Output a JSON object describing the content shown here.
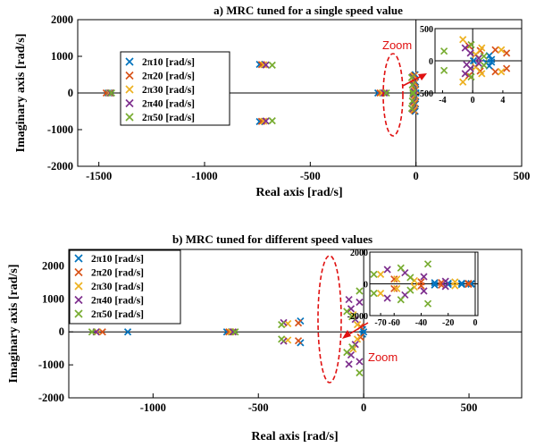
{
  "chart_data": [
    {
      "type": "scatter",
      "title": "a) MRC tuned for a single speed value",
      "xlabel": "Real axis [rad/s]",
      "ylabel": "Imaginary axis [rad/s]",
      "xlim": [
        -1600,
        500
      ],
      "ylim": [
        -2000,
        2000
      ],
      "xticks": [
        -1500,
        -1000,
        -500,
        0,
        500
      ],
      "xtick_labels": [
        "-1500",
        "-1000",
        "-500",
        "0",
        "500"
      ],
      "yticks": [
        -2000,
        -1000,
        0,
        1000,
        2000
      ],
      "ytick_labels": [
        "-2000",
        "-1000",
        "0",
        "1000",
        "2000"
      ],
      "legend_position": "left",
      "annotation": "Zoom",
      "series": [
        {
          "name": "2π10 [rad/s]",
          "color": "#0072bd",
          "points": [
            [
              -1455,
              0
            ],
            [
              -740,
              780
            ],
            [
              -740,
              -780
            ],
            [
              -180,
              0
            ],
            [
              -4,
              500
            ],
            [
              -4,
              -500
            ],
            [
              -2,
              300
            ],
            [
              -2,
              -300
            ],
            [
              -1,
              100
            ],
            [
              -1,
              -100
            ],
            [
              0,
              0
            ]
          ]
        },
        {
          "name": "2π20 [rad/s]",
          "color": "#d95319",
          "points": [
            [
              -1465,
              0
            ],
            [
              -730,
              775
            ],
            [
              -730,
              -775
            ],
            [
              -170,
              0
            ],
            [
              -8,
              480
            ],
            [
              -8,
              -480
            ],
            [
              -5,
              280
            ],
            [
              -5,
              -280
            ],
            [
              -3,
              80
            ],
            [
              -3,
              -80
            ]
          ]
        },
        {
          "name": "2π30 [rad/s]",
          "color": "#edb120",
          "points": [
            [
              -1450,
              0
            ],
            [
              -720,
              770
            ],
            [
              -720,
              -770
            ],
            [
              -160,
              0
            ],
            [
              -12,
              460
            ],
            [
              -12,
              -460
            ],
            [
              -9,
              260
            ],
            [
              -9,
              -260
            ],
            [
              -6,
              60
            ],
            [
              -6,
              -60
            ]
          ]
        },
        {
          "name": "2π40 [rad/s]",
          "color": "#7e2f8e",
          "points": [
            [
              -1445,
              0
            ],
            [
              -710,
              765
            ],
            [
              -710,
              -765
            ],
            [
              -150,
              0
            ],
            [
              -16,
              440
            ],
            [
              -16,
              -440
            ],
            [
              -13,
              240
            ],
            [
              -13,
              -240
            ],
            [
              -10,
              40
            ],
            [
              -10,
              -40
            ]
          ]
        },
        {
          "name": "2π50 [rad/s]",
          "color": "#77ac30",
          "points": [
            [
              -1440,
              0
            ],
            [
              -680,
              760
            ],
            [
              -680,
              -760
            ],
            [
              -140,
              0
            ],
            [
              -20,
              420
            ],
            [
              -20,
              -420
            ],
            [
              -17,
              220
            ],
            [
              -17,
              -220
            ],
            [
              -14,
              20
            ],
            [
              -14,
              -20
            ]
          ]
        }
      ],
      "inset": {
        "xlim": [
          -5,
          6.5
        ],
        "ylim": [
          -500,
          500
        ],
        "xticks": [
          -4,
          0,
          4
        ],
        "xtick_labels": [
          "-4",
          "0",
          "4"
        ],
        "yticks": [
          -500,
          0,
          500
        ],
        "ytick_labels": [
          "-500",
          "0",
          "500"
        ],
        "series": [
          {
            "name": "2π10 [rad/s]",
            "color": "#0072bd",
            "points": [
              [
                2.5,
                20
              ],
              [
                2.5,
                -20
              ],
              [
                2.2,
                80
              ],
              [
                2.2,
                -80
              ],
              [
                1.8,
                -30
              ],
              [
                0.1,
                0
              ]
            ]
          },
          {
            "name": "2π20 [rad/s]",
            "color": "#d95319",
            "points": [
              [
                4.5,
                120
              ],
              [
                4.5,
                -120
              ],
              [
                3,
                170
              ],
              [
                3,
                -170
              ],
              [
                -0.5,
                230
              ],
              [
                -0.5,
                -230
              ],
              [
                1,
                160
              ],
              [
                1,
                -160
              ]
            ]
          },
          {
            "name": "2π30 [rad/s]",
            "color": "#edb120",
            "points": [
              [
                -1.3,
                330
              ],
              [
                -1.3,
                -330
              ],
              [
                1.2,
                200
              ],
              [
                1.2,
                -200
              ],
              [
                3.8,
                170
              ],
              [
                3.8,
                -170
              ],
              [
                0.4,
                100
              ],
              [
                0.4,
                -100
              ]
            ]
          },
          {
            "name": "2π40 [rad/s]",
            "color": "#7e2f8e",
            "points": [
              [
                -1,
                200
              ],
              [
                -1,
                -200
              ],
              [
                -0.3,
                120
              ],
              [
                -0.3,
                -120
              ],
              [
                0.8,
                40
              ],
              [
                0.8,
                -40
              ],
              [
                -0.8,
                -60
              ]
            ]
          },
          {
            "name": "2π50 [rad/s]",
            "color": "#77ac30",
            "points": [
              [
                -3.8,
                150
              ],
              [
                -3.8,
                -150
              ],
              [
                -0.2,
                250
              ],
              [
                -0.2,
                -250
              ],
              [
                1.5,
                70
              ],
              [
                1.5,
                -70
              ]
            ]
          }
        ]
      }
    },
    {
      "type": "scatter",
      "title": "b) MRC tuned for different speed values",
      "xlabel": "Real axis [rad/s]",
      "ylabel": "Imaginary axis [rad/s]",
      "xlim": [
        -1400,
        750
      ],
      "ylim": [
        -2000,
        2500
      ],
      "xticks": [
        -1000,
        -500,
        0,
        500
      ],
      "xtick_labels": [
        "-1000",
        "-500",
        "0",
        "500"
      ],
      "yticks": [
        -2000,
        -1000,
        0,
        1000,
        2000
      ],
      "ytick_labels": [
        "-2000",
        "-1000",
        "0",
        "1000",
        "2000"
      ],
      "legend_position": "top-left",
      "annotation": "Zoom",
      "series": [
        {
          "name": "2π10 [rad/s]",
          "color": "#0072bd",
          "points": [
            [
              -1120,
              0
            ],
            [
              -650,
              0
            ],
            [
              -300,
              330
            ],
            [
              -300,
              -330
            ],
            [
              -5,
              70
            ],
            [
              -5,
              -70
            ],
            [
              0,
              0
            ]
          ]
        },
        {
          "name": "2π20 [rad/s]",
          "color": "#d95319",
          "points": [
            [
              -1240,
              0
            ],
            [
              -640,
              0
            ],
            [
              -310,
              270
            ],
            [
              -310,
              -270
            ],
            [
              -15,
              160
            ],
            [
              -15,
              -160
            ]
          ]
        },
        {
          "name": "2π30 [rad/s]",
          "color": "#edb120",
          "points": [
            [
              -1265,
              0
            ],
            [
              -630,
              0
            ],
            [
              -360,
              250
            ],
            [
              -360,
              -250
            ],
            [
              -30,
              220
            ],
            [
              -30,
              -220
            ],
            [
              -50,
              520
            ],
            [
              -50,
              -520
            ]
          ]
        },
        {
          "name": "2π40 [rad/s]",
          "color": "#7e2f8e",
          "points": [
            [
              -1270,
              0
            ],
            [
              -620,
              0
            ],
            [
              -380,
              280
            ],
            [
              -380,
              -280
            ],
            [
              -40,
              380
            ],
            [
              -40,
              -380
            ],
            [
              -60,
              700
            ],
            [
              -60,
              -700
            ],
            [
              -20,
              900
            ],
            [
              -20,
              -900
            ],
            [
              -70,
              980
            ],
            [
              -70,
              -980
            ]
          ]
        },
        {
          "name": "2π50 [rad/s]",
          "color": "#77ac30",
          "points": [
            [
              -1290,
              0
            ],
            [
              -610,
              0
            ],
            [
              -390,
              220
            ],
            [
              -390,
              -220
            ],
            [
              -20,
              1240
            ],
            [
              -20,
              -1240
            ],
            [
              -55,
              460
            ],
            [
              -55,
              -460
            ],
            [
              -80,
              620
            ],
            [
              -80,
              -620
            ]
          ]
        }
      ],
      "inset": {
        "xlim": [
          -78,
          2
        ],
        "ylim": [
          -2000,
          2000
        ],
        "xticks": [
          -70,
          -60,
          -40,
          -20,
          0
        ],
        "xtick_labels": [
          "-70",
          "-60",
          "-40",
          "-20",
          "0"
        ],
        "yticks": [
          -2000,
          0,
          2000
        ],
        "ytick_labels": [
          "-2000",
          "0",
          "2000"
        ],
        "series": [
          {
            "name": "2π10 [rad/s]",
            "color": "#0072bd",
            "points": [
              [
                -30,
                70
              ],
              [
                -30,
                -70
              ],
              [
                -20,
                40
              ],
              [
                -20,
                -40
              ],
              [
                -10,
                40
              ],
              [
                -10,
                -40
              ],
              [
                -3,
                20
              ],
              [
                -3,
                -20
              ]
            ]
          },
          {
            "name": "2π20 [rad/s]",
            "color": "#d95319",
            "points": [
              [
                -60,
                300
              ],
              [
                -60,
                -300
              ],
              [
                -40,
                120
              ],
              [
                -40,
                -120
              ],
              [
                -25,
                80
              ],
              [
                -25,
                -80
              ],
              [
                -5,
                30
              ],
              [
                -5,
                -30
              ]
            ]
          },
          {
            "name": "2π30 [rad/s]",
            "color": "#edb120",
            "points": [
              [
                -70,
                600
              ],
              [
                -70,
                -600
              ],
              [
                -58,
                300
              ],
              [
                -58,
                -300
              ],
              [
                -45,
                200
              ],
              [
                -45,
                -200
              ],
              [
                -15,
                120
              ],
              [
                -15,
                -120
              ]
            ]
          },
          {
            "name": "2π40 [rad/s]",
            "color": "#7e2f8e",
            "points": [
              [
                -65,
                900
              ],
              [
                -65,
                -900
              ],
              [
                -52,
                700
              ],
              [
                -52,
                -700
              ],
              [
                -38,
                450
              ],
              [
                -38,
                -450
              ],
              [
                -22,
                160
              ],
              [
                -22,
                -160
              ]
            ]
          },
          {
            "name": "2π50 [rad/s]",
            "color": "#77ac30",
            "points": [
              [
                -75,
                600
              ],
              [
                -75,
                -600
              ],
              [
                -55,
                1000
              ],
              [
                -55,
                -1000
              ],
              [
                -35,
                1250
              ],
              [
                -35,
                -1250
              ],
              [
                -48,
                400
              ],
              [
                -48,
                -400
              ]
            ]
          }
        ]
      }
    }
  ]
}
